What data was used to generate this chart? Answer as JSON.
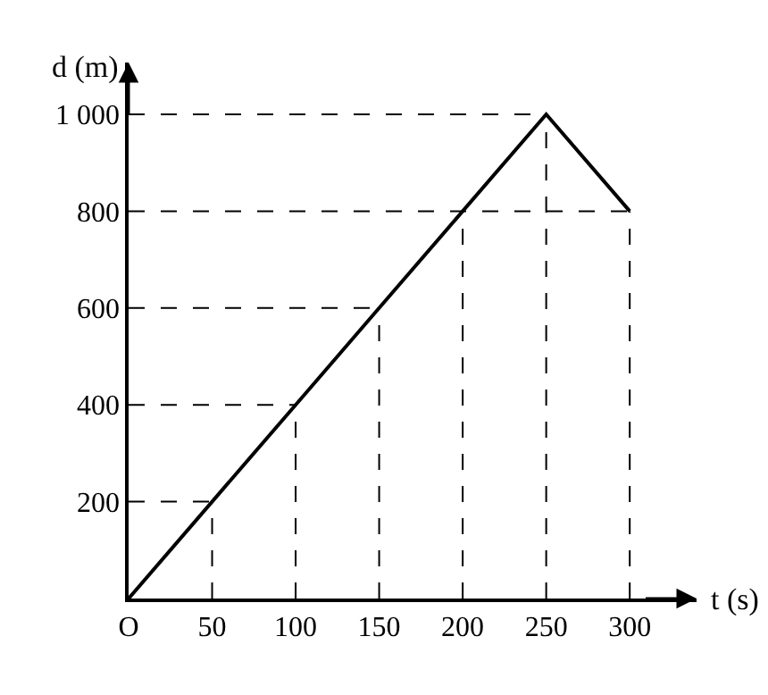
{
  "chart_data": {
    "type": "line",
    "xlabel": "t (s)",
    "ylabel": "d (m)",
    "x": [
      0,
      50,
      100,
      150,
      200,
      250,
      300
    ],
    "series": [
      {
        "color": "#000000",
        "values": [
          0,
          200,
          400,
          600,
          800,
          1000,
          800
        ]
      },
      {
        "color": "#000000",
        "x": [
          0,
          50
        ],
        "values": [
          200,
          200
        ],
        "line_style": "dashed"
      },
      {
        "color": "#000000",
        "x": [
          0,
          100
        ],
        "values": [
          400,
          400
        ],
        "line_style": "dashed"
      },
      {
        "color": "#000000",
        "x": [
          0,
          150
        ],
        "values": [
          600,
          600
        ],
        "line_style": "dashed"
      },
      {
        "color": "#000000",
        "x": [
          0,
          300
        ],
        "values": [
          800,
          800
        ],
        "line_style": "dashed"
      },
      {
        "color": "#000000",
        "x": [
          0,
          250
        ],
        "values": [
          1000,
          1000
        ],
        "line_style": "dashed"
      },
      {
        "color": "#000000",
        "x": [
          50,
          50
        ],
        "values": [
          0,
          200
        ],
        "line_style": "dashed"
      },
      {
        "color": "#000000",
        "x": [
          100,
          100
        ],
        "values": [
          0,
          400
        ],
        "line_style": "dashed"
      },
      {
        "color": "#000000",
        "x": [
          150,
          150
        ],
        "values": [
          0,
          600
        ],
        "line_style": "dashed"
      },
      {
        "color": "#000000",
        "x": [
          200,
          200
        ],
        "values": [
          0,
          800
        ],
        "line_style": "dashed"
      },
      {
        "color": "#000000",
        "x": [
          250,
          250
        ],
        "values": [
          0,
          1000
        ],
        "line_style": "dashed"
      },
      {
        "color": "#000000",
        "x": [
          300,
          300
        ],
        "values": [
          0,
          800
        ],
        "line_style": "dashed"
      }
    ],
    "xlim": [
      0,
      340
    ],
    "ylim": [
      0,
      1107
    ],
    "xticks": [
      {
        "value": 0,
        "label": "O"
      },
      50,
      100,
      150,
      200,
      250,
      300
    ],
    "yticks": [
      200,
      400,
      600,
      800,
      {
        "value": 1000,
        "label": "1 000"
      }
    ],
    "marker": "none",
    "line_style": "solid"
  }
}
